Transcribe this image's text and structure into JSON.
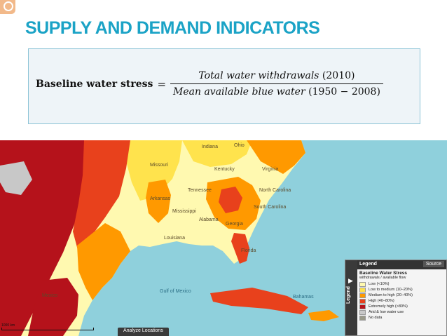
{
  "slide": {
    "title": "SUPPLY AND DEMAND INDICATORS"
  },
  "formula": {
    "lhs": "Baseline water stress",
    "eq": "=",
    "numerator": "Total water withdrawals",
    "numerator_year": " (2010)",
    "denominator": "Mean available blue water",
    "denominator_years": " (1950 − 2008)"
  },
  "map": {
    "labels": {
      "indiana": "Indiana",
      "ohio": "Ohio",
      "missouri": "Missouri",
      "kentucky": "Kentucky",
      "virginia": "Virginia",
      "tennessee": "Tennessee",
      "arkansas": "Arkansas",
      "north_carolina": "North Carolina",
      "south_carolina": "South Carolina",
      "mississippi": "Mississippi",
      "alabama": "Alabama",
      "georgia": "Georgia",
      "louisiana": "Louisiana",
      "florida": "Florida",
      "gulf_of_mexico": "Gulf of Mexico",
      "bahamas": "Bahamas",
      "mexico": "Mexico"
    },
    "analyze_button": "Analyze Locations",
    "scale_label": "1000 km",
    "legend": {
      "tab": "Legend",
      "header": "Legend",
      "source_button": "Source",
      "title": "Baseline Water Stress",
      "subtitle": "withdrawals / available flow",
      "items": [
        {
          "label": "Low (<10%)",
          "color": "#fff9b0"
        },
        {
          "label": "Low to medium (10–20%)",
          "color": "#ffe34d"
        },
        {
          "label": "Medium to high (20–40%)",
          "color": "#ff9900"
        },
        {
          "label": "High (40–80%)",
          "color": "#e8411c"
        },
        {
          "label": "Extremely high (>80%)",
          "color": "#b5121b"
        },
        {
          "label": "Arid & low water use",
          "color": "#c8c8c8"
        },
        {
          "label": "No data",
          "color": "#9a9a8a"
        }
      ]
    },
    "colors": {
      "water": "#8fd0dc",
      "low": "#fff9b0",
      "low_medium": "#ffe34d",
      "medium_high": "#ff9900",
      "high": "#e8411c",
      "extreme": "#b5121b"
    }
  }
}
